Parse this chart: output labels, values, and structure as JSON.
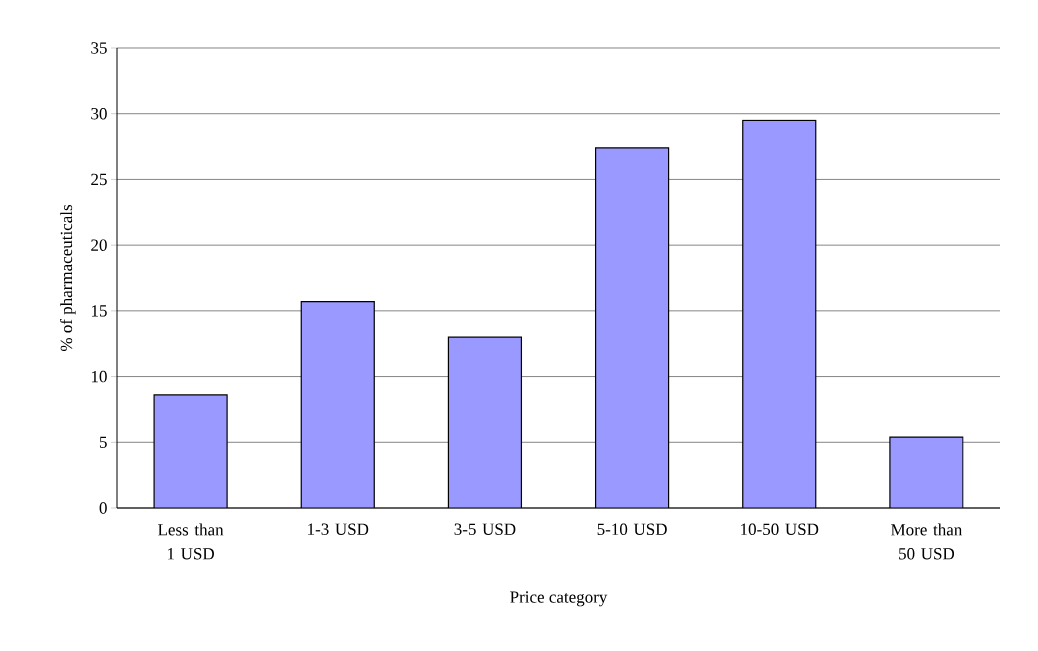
{
  "chart_data": {
    "type": "bar",
    "xlabel": "Price category",
    "ylabel": "% of pharmaceuticals",
    "categories": [
      "Less than 1 USD",
      "1-3 USD",
      "3-5 USD",
      "5-10 USD",
      "10-50 USD",
      "More than 50 USD"
    ],
    "values": [
      8.6,
      15.7,
      13.0,
      27.4,
      29.5,
      5.4
    ],
    "color": "#9999ff",
    "ylim": [
      0,
      35
    ],
    "yticks": [
      0,
      5,
      10,
      15,
      20,
      25,
      30,
      35
    ],
    "grid": "y"
  }
}
